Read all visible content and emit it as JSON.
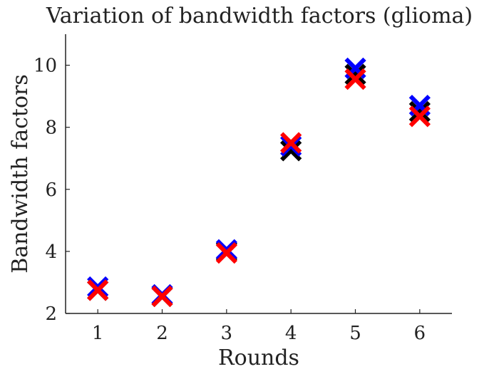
{
  "chart_data": {
    "type": "scatter",
    "title": "Variation of bandwidth factors (glioma)",
    "xlabel": "Rounds",
    "ylabel": "Bandwidth factors",
    "xlim": [
      0.5,
      6.5
    ],
    "ylim": [
      2,
      11
    ],
    "x_ticks": [
      1,
      2,
      3,
      4,
      5,
      6
    ],
    "y_ticks": [
      2,
      4,
      6,
      8,
      10
    ],
    "grid": false,
    "marker": "x",
    "series": [
      {
        "color": "#000000",
        "x": [
          1,
          2,
          3,
          4,
          5,
          6
        ],
        "y": [
          2.75,
          2.55,
          4.0,
          7.25,
          9.7,
          8.5
        ]
      },
      {
        "color": "#0000ff",
        "x": [
          1,
          2,
          3,
          4,
          5,
          6
        ],
        "y": [
          2.85,
          2.6,
          4.05,
          7.4,
          9.9,
          8.7
        ]
      },
      {
        "color": "#ff0000",
        "x": [
          1,
          2,
          3,
          4,
          5,
          6
        ],
        "y": [
          2.75,
          2.55,
          3.95,
          7.5,
          9.55,
          8.35
        ]
      }
    ]
  }
}
